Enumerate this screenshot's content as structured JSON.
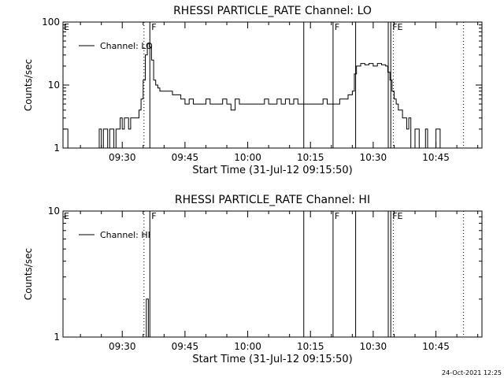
{
  "footer": {
    "timestamp": "24-Oct-2021 12:25"
  },
  "chart_data": [
    {
      "type": "line",
      "title": "RHESSI PARTICLE_RATE Channel: LO",
      "xlabel": "Start Time (31-Jul-12 09:15:50)",
      "ylabel": "Counts/sec",
      "y_scale": "log",
      "ylim": [
        1,
        100
      ],
      "xlim": [
        "09:15:50",
        "10:56:00"
      ],
      "x_ticks": [
        "09:30",
        "09:45",
        "10:00",
        "10:15",
        "10:30",
        "10:45"
      ],
      "y_ticks": [
        "1",
        "10",
        "100"
      ],
      "legend": {
        "position": "top-left",
        "entries": [
          "Channel: LO"
        ]
      },
      "markers": [
        {
          "time": "09:35:12",
          "style": "dotted",
          "label": ""
        },
        {
          "time": "09:36:36",
          "style": "solid",
          "label": "F"
        },
        {
          "time": "10:13:24",
          "style": "solid",
          "label": ""
        },
        {
          "time": "10:20:24",
          "style": "solid",
          "label": "F"
        },
        {
          "time": "10:25:48",
          "style": "solid",
          "label": ""
        },
        {
          "time": "10:33:36",
          "style": "solid",
          "label": ""
        },
        {
          "time": "10:34:12",
          "style": "solid",
          "label": "FE"
        },
        {
          "time": "10:34:48",
          "style": "dotted",
          "label": ""
        },
        {
          "time": "10:51:36",
          "style": "dotted",
          "label": ""
        }
      ],
      "edge_labels": [
        "E"
      ],
      "series": [
        {
          "name": "Channel: LO",
          "x": [
            "09:16:00",
            "09:17:00",
            "09:24:00",
            "09:24:30",
            "09:25:00",
            "09:25:30",
            "09:26:00",
            "09:26:30",
            "09:27:00",
            "09:27:30",
            "09:28:00",
            "09:28:30",
            "09:29:00",
            "09:29:30",
            "09:30:00",
            "09:30:30",
            "09:31:00",
            "09:31:30",
            "09:32:00",
            "09:32:30",
            "09:33:00",
            "09:33:30",
            "09:34:00",
            "09:34:30",
            "09:35:00",
            "09:35:30",
            "09:36:00",
            "09:36:30",
            "09:37:00",
            "09:37:30",
            "09:38:00",
            "09:38:30",
            "09:39:00",
            "09:40:00",
            "09:41:00",
            "09:42:00",
            "09:43:00",
            "09:44:00",
            "09:45:00",
            "09:46:00",
            "09:47:00",
            "09:48:00",
            "09:49:00",
            "09:50:00",
            "09:51:00",
            "09:52:00",
            "09:53:00",
            "09:54:00",
            "09:55:00",
            "09:56:00",
            "09:57:00",
            "09:58:00",
            "09:59:00",
            "10:00:00",
            "10:01:00",
            "10:02:00",
            "10:03:00",
            "10:04:00",
            "10:05:00",
            "10:06:00",
            "10:07:00",
            "10:08:00",
            "10:09:00",
            "10:10:00",
            "10:11:00",
            "10:12:00",
            "10:13:00",
            "10:14:00",
            "10:15:00",
            "10:16:00",
            "10:17:00",
            "10:18:00",
            "10:19:00",
            "10:20:00",
            "10:21:00",
            "10:22:00",
            "10:23:00",
            "10:24:00",
            "10:25:00",
            "10:25:30",
            "10:26:00",
            "10:27:00",
            "10:28:00",
            "10:29:00",
            "10:30:00",
            "10:31:00",
            "10:32:00",
            "10:33:00",
            "10:33:30",
            "10:34:00",
            "10:34:30",
            "10:35:00",
            "10:35:30",
            "10:36:00",
            "10:37:00",
            "10:38:00",
            "10:38:30",
            "10:39:00",
            "10:40:00",
            "10:41:00",
            "10:42:00",
            "10:42:30",
            "10:43:00",
            "10:44:00",
            "10:45:00",
            "10:46:00",
            "10:47:00",
            "10:48:00"
          ],
          "y": [
            2,
            1,
            1,
            2,
            1,
            2,
            2,
            1,
            2,
            2,
            1,
            2,
            2,
            3,
            2,
            3,
            3,
            2,
            3,
            3,
            3,
            3,
            4,
            6,
            12,
            30,
            45,
            40,
            25,
            12,
            10,
            9,
            8,
            8,
            8,
            7,
            7,
            6,
            5,
            6,
            5,
            5,
            5,
            6,
            5,
            5,
            5,
            6,
            5,
            4,
            6,
            5,
            5,
            5,
            5,
            5,
            5,
            6,
            5,
            5,
            6,
            5,
            6,
            5,
            6,
            5,
            5,
            5,
            5,
            5,
            5,
            6,
            5,
            5,
            5,
            6,
            6,
            7,
            8,
            15,
            20,
            22,
            21,
            22,
            20,
            22,
            21,
            20,
            16,
            12,
            8,
            6,
            5,
            4,
            3,
            2,
            3,
            1,
            2,
            1,
            1,
            2,
            1,
            1,
            2,
            1,
            1,
            1
          ]
        }
      ]
    },
    {
      "type": "line",
      "title": "RHESSI PARTICLE_RATE Channel: HI",
      "xlabel": "Start Time (31-Jul-12 09:15:50)",
      "ylabel": "Counts/sec",
      "y_scale": "log",
      "ylim": [
        1,
        10
      ],
      "xlim": [
        "09:15:50",
        "10:56:00"
      ],
      "x_ticks": [
        "09:30",
        "09:45",
        "10:00",
        "10:15",
        "10:30",
        "10:45"
      ],
      "y_ticks": [
        "1",
        "10"
      ],
      "legend": {
        "position": "top-left",
        "entries": [
          "Channel: HI"
        ]
      },
      "markers": [
        {
          "time": "09:35:12",
          "style": "dotted",
          "label": ""
        },
        {
          "time": "09:36:36",
          "style": "solid",
          "label": "F"
        },
        {
          "time": "10:13:24",
          "style": "solid",
          "label": ""
        },
        {
          "time": "10:20:24",
          "style": "solid",
          "label": "F"
        },
        {
          "time": "10:25:48",
          "style": "solid",
          "label": ""
        },
        {
          "time": "10:33:36",
          "style": "solid",
          "label": ""
        },
        {
          "time": "10:34:12",
          "style": "solid",
          "label": "FE"
        },
        {
          "time": "10:34:48",
          "style": "dotted",
          "label": ""
        },
        {
          "time": "10:51:36",
          "style": "dotted",
          "label": ""
        }
      ],
      "edge_labels": [
        "E"
      ],
      "series": [
        {
          "name": "Channel: HI",
          "x": [
            "09:35:30",
            "09:35:45",
            "09:36:00",
            "09:36:15",
            "09:36:30"
          ],
          "y": [
            1,
            2,
            2,
            1,
            1
          ]
        }
      ]
    }
  ]
}
